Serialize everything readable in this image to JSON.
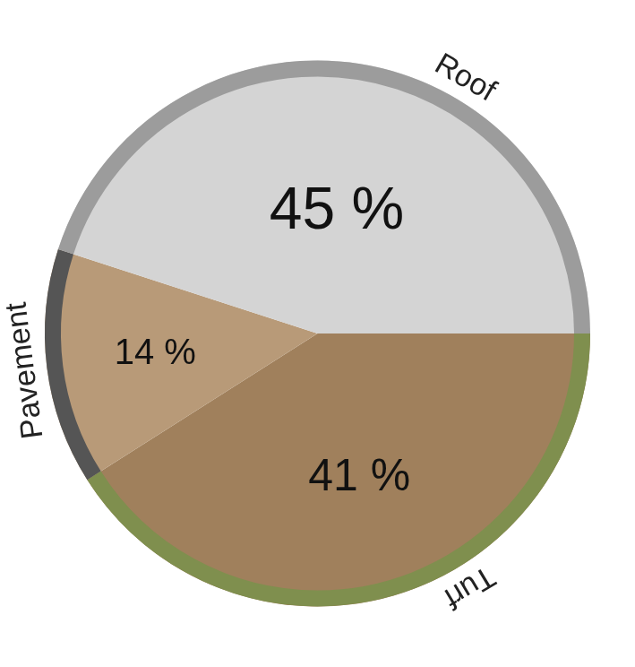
{
  "chart_data": {
    "type": "pie",
    "categories": [
      "Turf",
      "Pavement",
      "Roof"
    ],
    "values": [
      41,
      14,
      45
    ],
    "value_labels": [
      "41 %",
      "14 %",
      "45 %"
    ],
    "colors": [
      "#a0805c",
      "#b89a78",
      "#d4d4d4"
    ],
    "data_labels": true
  }
}
